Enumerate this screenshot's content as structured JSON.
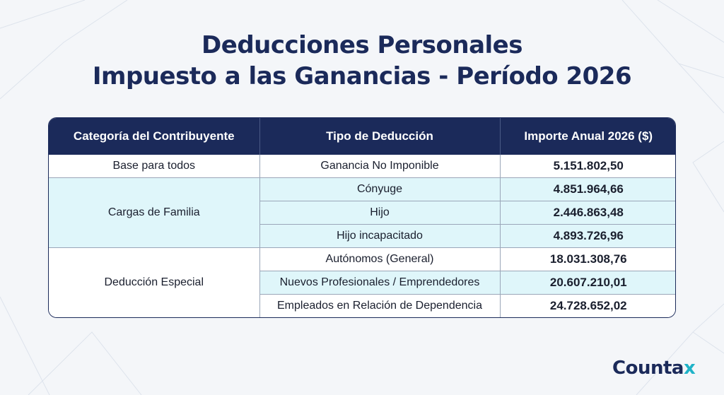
{
  "title": {
    "line1": "Deducciones Personales",
    "line2": "Impuesto a las Ganancias - Período 2026"
  },
  "table": {
    "headers": [
      "Categoría del Contribuyente",
      "Tipo de Deducción",
      "Importe Anual 2026 ($)"
    ],
    "groups": [
      {
        "category": "Base para todos",
        "rows": [
          {
            "type": "Ganancia No Imponible",
            "amount": "5.151.802,50"
          }
        ]
      },
      {
        "category": "Cargas de Familia",
        "rows": [
          {
            "type": "Cónyuge",
            "amount": "4.851.964,66"
          },
          {
            "type": "Hijo",
            "amount": "2.446.863,48"
          },
          {
            "type": "Hijo incapacitado",
            "amount": "4.893.726,96"
          }
        ]
      },
      {
        "category": "Deducción Especial",
        "rows": [
          {
            "type": "Autónomos (General)",
            "amount": "18.031.308,76"
          },
          {
            "type": "Nuevos Profesionales / Emprendedores",
            "amount": "20.607.210,01"
          },
          {
            "type": "Empleados en Relación de Dependencia",
            "amount": "24.728.652,02"
          }
        ]
      }
    ]
  },
  "logo": {
    "main": "Counta",
    "accent": "x"
  },
  "colors": {
    "navy": "#1b2a5a",
    "cyan_row": "#dff6fa",
    "accent": "#1fb3c8"
  }
}
